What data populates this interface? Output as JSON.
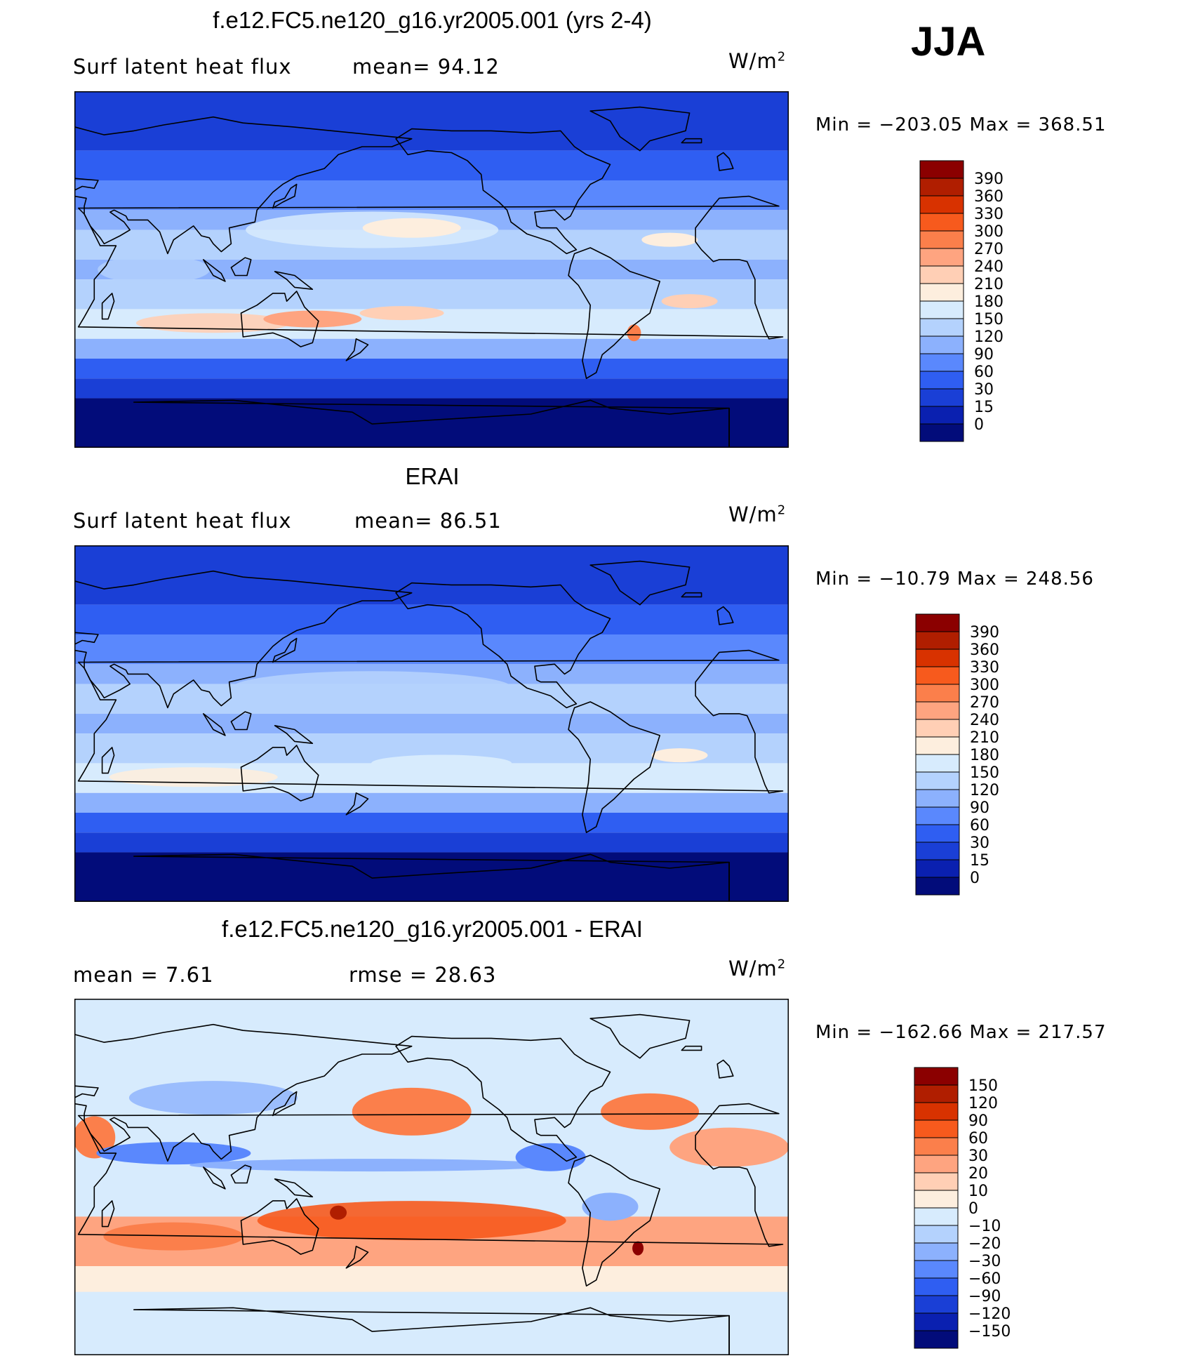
{
  "season": "JJA",
  "panels": [
    {
      "id": "model",
      "title": "f.e12.FC5.ne120_g16.yr2005.001 (yrs 2-4)",
      "variable": "Surf  latent  heat  flux",
      "stat1": "mean=   94.12",
      "stat2": "",
      "units": "W/m",
      "units_sup": "2",
      "minmax": "Min  =  −203.05  Max  =  368.51",
      "palette": "seq",
      "levels": [
        "390",
        "360",
        "330",
        "300",
        "270",
        "240",
        "210",
        "180",
        "150",
        "120",
        "90",
        "60",
        "30",
        "15",
        "0"
      ]
    },
    {
      "id": "obs",
      "title": "ERAI",
      "variable": "Surf  latent  heat  flux",
      "stat1": "mean=   86.51",
      "stat2": "",
      "units": "W/m",
      "units_sup": "2",
      "minmax": "Min  =  −10.79  Max  =  248.56",
      "palette": "seq",
      "levels": [
        "390",
        "360",
        "330",
        "300",
        "270",
        "240",
        "210",
        "180",
        "150",
        "120",
        "90",
        "60",
        "30",
        "15",
        "0"
      ]
    },
    {
      "id": "diff",
      "title": "f.e12.FC5.ne120_g16.yr2005.001 - ERAI",
      "variable": "mean  =      7.61",
      "stat1": "",
      "stat2": "rmse  =    28.63",
      "units": "W/m",
      "units_sup": "2",
      "minmax": "Min  =  −162.66  Max  =  217.57",
      "palette": "div",
      "levels": [
        "150",
        "120",
        "90",
        "60",
        "30",
        "20",
        "10",
        "0",
        "−10",
        "−20",
        "−30",
        "−60",
        "−90",
        "−120",
        "−150"
      ]
    }
  ],
  "colors": {
    "seq": [
      "#8b0000",
      "#b01e00",
      "#d83200",
      "#f75a1d",
      "#fb7f4b",
      "#fea480",
      "#ffcfb5",
      "#fdeede",
      "#d7ebfd",
      "#b4d2fd",
      "#8cb1fd",
      "#5a88fd",
      "#2f5ef2",
      "#1a3fd6",
      "#0a20b0",
      "#020c7a"
    ],
    "div": [
      "#8b0000",
      "#b01e00",
      "#d83200",
      "#f75a1d",
      "#fb7f4b",
      "#fea480",
      "#ffcfb5",
      "#fdeede",
      "#d7ebfd",
      "#b4d2fd",
      "#8cb1fd",
      "#5a88fd",
      "#2f5ef2",
      "#1a3fd6",
      "#0a20b0",
      "#020c7a"
    ]
  }
}
